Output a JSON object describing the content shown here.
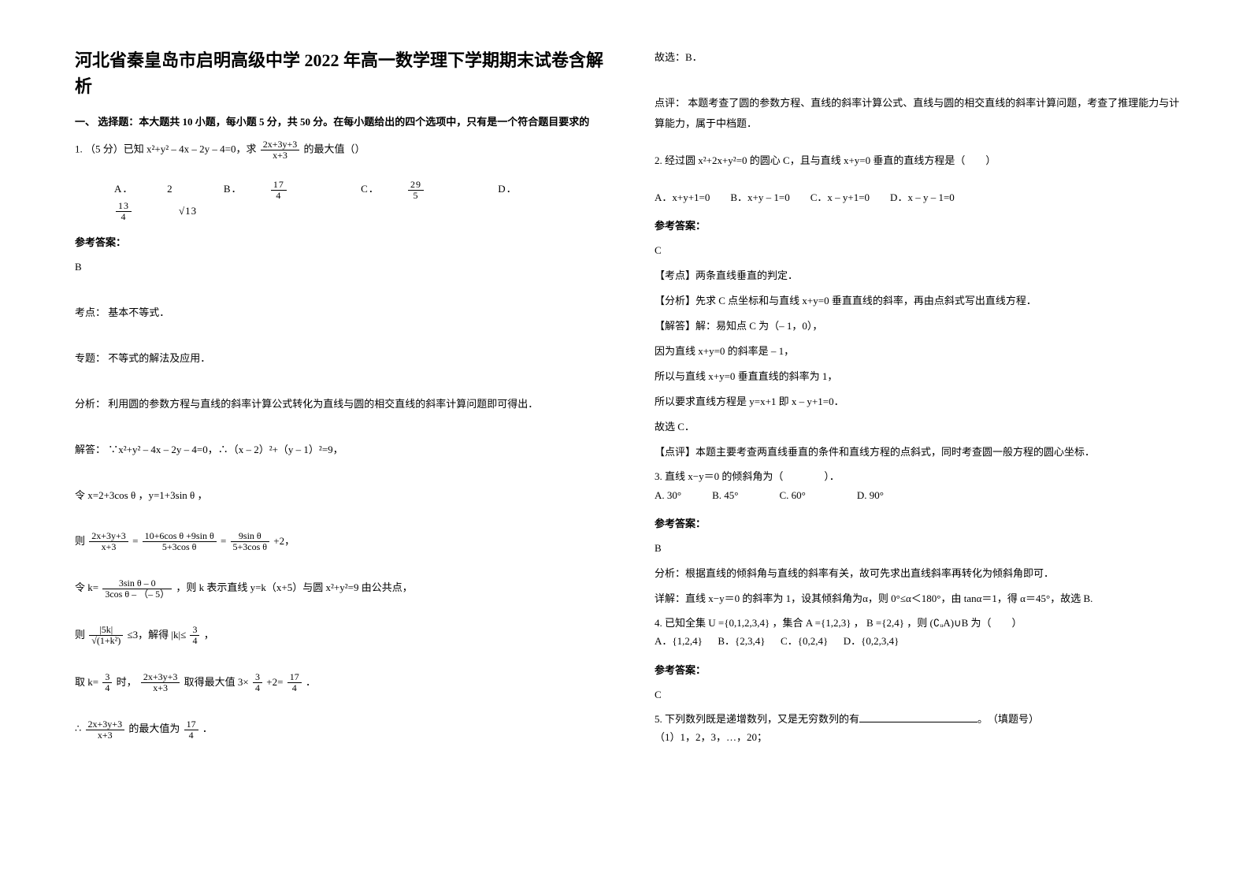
{
  "title": "河北省秦皇岛市启明高级中学 2022 年高一数学理下学期期末试卷含解析",
  "section1_heading": "一、 选择题：本大题共 10 小题，每小题 5 分，共 50 分。在每小题给出的四个选项中，只有是一个符合题目要求的",
  "q1": {
    "stem_prefix": "1. （5 分）已知 x²+y² – 4x – 2y – 4=0，求",
    "stem_suffix": "的最大值（）",
    "frac_num": "2x+3y+3",
    "frac_den": "x+3",
    "opt_a_label": "A．",
    "opt_a_val": "2",
    "opt_b_label": "B．",
    "opt_b_num": "17",
    "opt_b_den": "4",
    "opt_c_label": "C．",
    "opt_c_num": "29",
    "opt_c_den": "5",
    "opt_d_label": "D．",
    "opt_d_num": "13",
    "opt_d_den": "4",
    "opt_d_sqrt": "√13",
    "answer_label": "参考答案：",
    "answer": "B",
    "kaodian": "考点：&nbsp;基本不等式．",
    "zhuanti": "专题：&nbsp;不等式的解法及应用．",
    "fenxi": "分析：&nbsp;利用圆的参数方程与直线的斜率计算公式转化为直线与圆的相交直线的斜率计算问题即可得出．",
    "jieda1": "解答：&nbsp;∵x²+y² – 4x – 2y – 4=0，∴（x – 2）²+（y – 1）²=9，",
    "jieda2": "令 x=2+3cos θ ，y=1+3sin θ ，",
    "jieda3_prefix": "则",
    "jieda3_eq": "=",
    "jieda3_frac1_num": "2x+3y+3",
    "jieda3_frac1_den": "x+3",
    "jieda3_frac2_num": "10+6cos θ +9sin θ",
    "jieda3_frac2_den": "5+3cos θ",
    "jieda3_eq2": "=",
    "jieda3_frac3_num": "9sin θ",
    "jieda3_frac3_den": "5+3cos θ",
    "jieda3_suffix": "+2，",
    "jieda4_prefix": "令 k=",
    "jieda4_frac_num": "3sin θ – 0",
    "jieda4_frac_den": "3cos θ – （– 5）",
    "jieda4_suffix": "，则 k 表示直线 y=k（x+5）与圆 x²+y²=9 由公共点，",
    "jieda5_prefix": "则",
    "jieda5_frac_num": "|5k|",
    "jieda5_frac_den": "√(1+k²)",
    "jieda5_mid": "≤3，解得",
    "jieda5_abs": "|k|≤",
    "jieda5_frac2_num": "3",
    "jieda5_frac2_den": "4",
    "jieda5_suffix": "，",
    "jieda6_prefix": "取 k=",
    "jieda6_frac1_num": "3",
    "jieda6_frac1_den": "4",
    "jieda6_mid": "时，",
    "jieda6_frac2_num": "2x+3y+3",
    "jieda6_frac2_den": "x+3",
    "jieda6_mid2": "取得最大值",
    "jieda6_expr": "3×",
    "jieda6_frac3_num": "3",
    "jieda6_frac3_den": "4",
    "jieda6_mid3": "+2=",
    "jieda6_frac4_num": "17",
    "jieda6_frac4_den": "4",
    "jieda6_suffix": "．",
    "jieda7_prefix": "∴",
    "jieda7_frac_num": "2x+3y+3",
    "jieda7_frac_den": "x+3",
    "jieda7_mid": "的最大值为",
    "jieda7_frac2_num": "17",
    "jieda7_frac2_den": "4",
    "jieda7_suffix": "．",
    "guxuan": "故选：B．",
    "dianping": "点评：&nbsp;本题考查了圆的参数方程、直线的斜率计算公式、直线与圆的相交直线的斜率计算问题，考查了推理能力与计算能力，属于中档题．"
  },
  "q2": {
    "stem": "2. 经过圆 x²+2x+y²=0 的圆心 C，且与直线 x+y=0 垂直的直线方程是（　　）",
    "options": "A．x+y+1=0　　B．x+y – 1=0　　C．x – y+1=0　　D．x – y – 1=0",
    "answer_label": "参考答案：",
    "answer": "C",
    "kaodian": "【考点】两条直线垂直的判定．",
    "fenxi": "【分析】先求 C 点坐标和与直线 x+y=0 垂直直线的斜率，再由点斜式写出直线方程．",
    "jieda1": "【解答】解：易知点 C 为（– 1，0），",
    "jieda2": "因为直线 x+y=0 的斜率是 – 1，",
    "jieda3": "所以与直线 x+y=0 垂直直线的斜率为 1，",
    "jieda4": "所以要求直线方程是 y=x+1 即 x – y+1=0．",
    "guxuan": "故选 C．",
    "dianping": "【点评】本题主要考查两直线垂直的条件和直线方程的点斜式，同时考查圆一般方程的圆心坐标．"
  },
  "q3": {
    "stem": "3. 直线 x−y＝0 的倾斜角为（　　　　）．",
    "options": "A. 30°　　　B. 45°　　　　C. 60°　　　　　D. 90°",
    "answer_label": "参考答案：",
    "answer": "B",
    "fenxi": "分析：根据直线的倾斜角与直线的斜率有关，故可先求出直线斜率再转化为倾斜角即可．",
    "xiangjie": "详解：直线 x−y＝0  的斜率为 1，设其倾斜角为α，则 0°≤α＜180°，由 tanα＝1，得 α＝45°，故选 B."
  },
  "q4": {
    "stem_prefix": "4. 已知全集",
    "set_u": "U ={0,1,2,3,4}",
    "mid1": "，集合",
    "set_a": "A ={1,2,3}",
    "mid_comma": "，",
    "set_b": "B ={2,4}",
    "mid2": "，则",
    "expr": "(∁ᵤA)∪B",
    "suffix": "为（　　）",
    "opt_a_label": "A．",
    "opt_a": "{1,2,4}",
    "opt_b_label": "B．",
    "opt_b": "{2,3,4}",
    "opt_c_label": "C．",
    "opt_c": "{0,2,4}",
    "opt_d_label": "D．",
    "opt_d": "{0,2,3,4}",
    "answer_label": "参考答案：",
    "answer": "C"
  },
  "q5": {
    "stem_prefix": "5. 下列数列既是递增数列，又是无穷数列的有",
    "stem_suffix": "。　（填题号）",
    "item1": "（1）1，2，3，…，20；"
  }
}
